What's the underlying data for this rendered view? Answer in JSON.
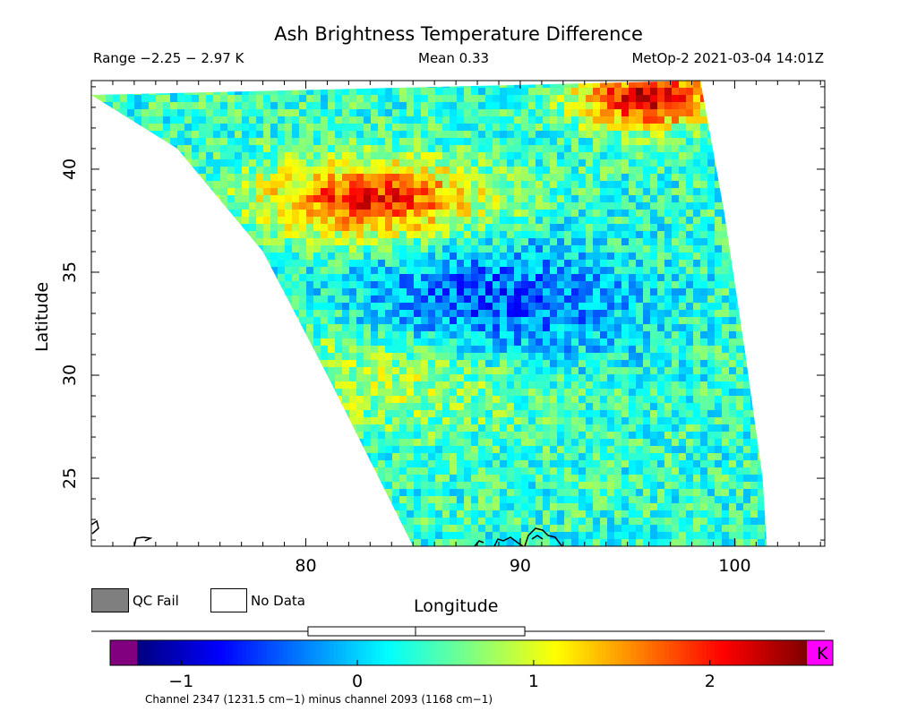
{
  "header": {
    "title": "Ash Brightness Temperature Difference",
    "range_text": "Range −2.25 − 2.97 K",
    "mean_text": "Mean 0.33",
    "satellite_text": "MetOp-2 2021-03-04 14:01Z"
  },
  "legend": {
    "qc_fail": "QC Fail",
    "no_data": "No Data",
    "qc_fail_color": "#7f7f7f",
    "no_data_color": "#ffffff"
  },
  "colorbar": {
    "unit": "K",
    "min": -1.25,
    "max": 2.55,
    "ticks": [
      -1,
      0,
      1,
      2
    ],
    "tick_labels": [
      "−1",
      "0",
      "1",
      "2"
    ],
    "under_color": "#800080",
    "over_color": "#ff00ff",
    "colors": [
      "#00007f",
      "#0000ff",
      "#0080ff",
      "#00ffff",
      "#80ff80",
      "#ffff00",
      "#ff8000",
      "#ff0000",
      "#7f0000"
    ],
    "range_box": {
      "min": -2.25,
      "max": 2.97,
      "mean": 0.33
    },
    "footnote": "Channel 2347 (1231.5 cm−1) minus channel 2093 (1168 cm−1)"
  },
  "chart_data": {
    "type": "heatmap",
    "title": "Ash Brightness Temperature Difference",
    "xlabel": "Longitude",
    "ylabel": "Latitude",
    "xlim": [
      70,
      104.2
    ],
    "ylim": [
      21.7,
      44.3
    ],
    "x_ticks": [
      80,
      90,
      100
    ],
    "y_ticks": [
      25,
      30,
      35,
      40
    ],
    "value_units": "K",
    "value_range": [
      -2.25,
      2.97
    ],
    "mean": 0.33,
    "swath_edges": {
      "left": [
        [
          70.0,
          43.6
        ],
        [
          74.0,
          41.0
        ],
        [
          78.0,
          36.0
        ],
        [
          81.0,
          30.0
        ],
        [
          85.0,
          21.7
        ]
      ],
      "right": [
        [
          98.4,
          44.3
        ],
        [
          99.5,
          38.0
        ],
        [
          100.5,
          31.0
        ],
        [
          101.3,
          25.0
        ],
        [
          101.5,
          21.7
        ]
      ]
    },
    "features": [
      {
        "name": "high BTD plume north",
        "lon": [
          78,
          88
        ],
        "lat": [
          37,
          40
        ],
        "value": 2.0
      },
      {
        "name": "high BTD northeast corner",
        "lon": [
          93,
          99
        ],
        "lat": [
          42.5,
          44.3
        ],
        "value": 2.3
      },
      {
        "name": "moderate BTD band central",
        "lon": [
          78,
          92
        ],
        "lat": [
          28,
          32.5
        ],
        "value": 1.1
      },
      {
        "name": "low BTD region",
        "lon": [
          82,
          95
        ],
        "lat": [
          30,
          36
        ],
        "value": -0.6
      },
      {
        "name": "background",
        "lon": [
          72,
          101
        ],
        "lat": [
          21.7,
          44.3
        ],
        "value": 0.3
      }
    ]
  }
}
